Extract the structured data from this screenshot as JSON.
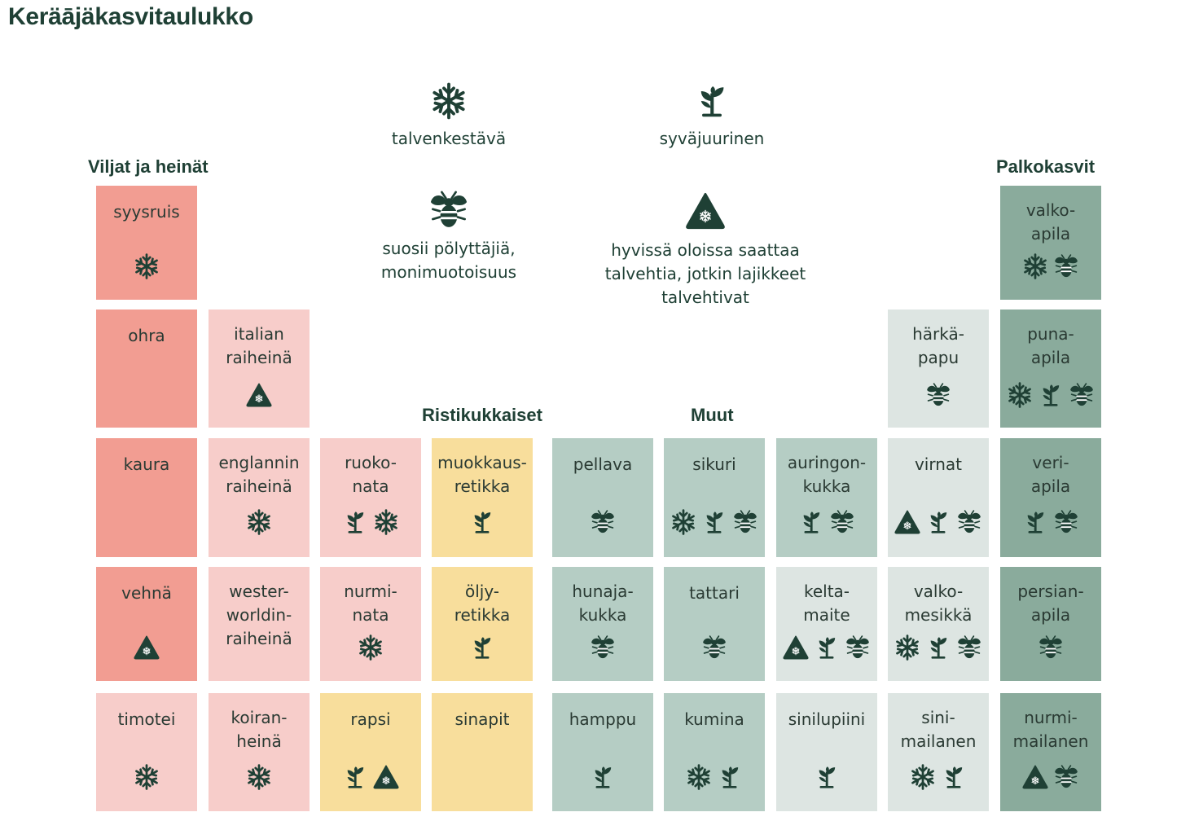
{
  "title": "Keräājäkasvitaulukko",
  "groups": {
    "cereals": "Viljat ja heinät",
    "crucifers": "Ristikukkaiset",
    "other": "Muut",
    "legumes": "Palkokasvit"
  },
  "legend": {
    "winter_hardy": "talvenkestävä",
    "deep_rooted": "syväjuurinen",
    "pollinators": "suosii pölyttäjiä,\nmonimuotoisuus",
    "may_overwinter": "hyvissä oloissa saattaa\ntalvehtia, jotkin lajikkeet\ntalvehtivat"
  },
  "icon_names": {
    "snow": "snowflake-icon",
    "root": "sprout-icon",
    "bee": "bee-icon",
    "warn": "warning-snowflake-icon"
  },
  "colors": {
    "title": "#1f4035",
    "tile_red": "#f29d92",
    "tile_pink": "#f7cdca",
    "tile_yellow": "#f8de9c",
    "tile_sage": "#b5cdc4",
    "tile_light": "#dde5e2",
    "tile_green": "#8aab9c"
  },
  "tiles": [
    {
      "name": "syysruis",
      "color": "tile_red",
      "icons": [
        "snow"
      ]
    },
    {
      "name": "ohra",
      "color": "tile_red",
      "icons": []
    },
    {
      "name": "italian\nraiheinä",
      "color": "tile_pink",
      "icons": [
        "warn"
      ]
    },
    {
      "name": "kaura",
      "color": "tile_red",
      "icons": []
    },
    {
      "name": "englannin\nraiheinä",
      "color": "tile_pink",
      "icons": [
        "snow"
      ]
    },
    {
      "name": "ruoko-\nnata",
      "color": "tile_pink",
      "icons": [
        "root",
        "snow"
      ]
    },
    {
      "name": "vehnä",
      "color": "tile_red",
      "icons": [
        "warn"
      ]
    },
    {
      "name": "wester-\nworldin-\nraiheinä",
      "color": "tile_pink",
      "icons": []
    },
    {
      "name": "nurmi-\nnata",
      "color": "tile_pink",
      "icons": [
        "snow"
      ]
    },
    {
      "name": "timotei",
      "color": "tile_pink",
      "icons": [
        "snow"
      ]
    },
    {
      "name": "koiran-\nheinä",
      "color": "tile_pink",
      "icons": [
        "snow"
      ]
    },
    {
      "name": "rapsi",
      "color": "tile_yellow",
      "icons": [
        "root",
        "warn"
      ]
    },
    {
      "name": "muokkaus-\nretikka",
      "color": "tile_yellow",
      "icons": [
        "root"
      ]
    },
    {
      "name": "öljy-\nretikka",
      "color": "tile_yellow",
      "icons": [
        "root"
      ]
    },
    {
      "name": "sinapit",
      "color": "tile_yellow",
      "icons": []
    },
    {
      "name": "pellava",
      "color": "tile_sage",
      "icons": [
        "bee"
      ]
    },
    {
      "name": "hunaja-\nkukka",
      "color": "tile_sage",
      "icons": [
        "bee"
      ]
    },
    {
      "name": "hamppu",
      "color": "tile_sage",
      "icons": [
        "root"
      ]
    },
    {
      "name": "sikuri",
      "color": "tile_sage",
      "icons": [
        "snow",
        "root",
        "bee"
      ]
    },
    {
      "name": "tattari",
      "color": "tile_sage",
      "icons": [
        "bee"
      ]
    },
    {
      "name": "kumina",
      "color": "tile_sage",
      "icons": [
        "snow",
        "root"
      ]
    },
    {
      "name": "auringon-\nkukka",
      "color": "tile_sage",
      "icons": [
        "root",
        "bee"
      ]
    },
    {
      "name": "kelta-\nmaite",
      "color": "tile_light",
      "icons": [
        "warn",
        "root",
        "bee"
      ]
    },
    {
      "name": "sinilupiini",
      "color": "tile_light",
      "icons": [
        "root"
      ]
    },
    {
      "name": "härkä-\npapu",
      "color": "tile_light",
      "icons": [
        "bee"
      ]
    },
    {
      "name": "virnat",
      "color": "tile_light",
      "icons": [
        "warn",
        "root",
        "bee"
      ]
    },
    {
      "name": "valko-\nmesikkä",
      "color": "tile_light",
      "icons": [
        "snow",
        "root",
        "bee"
      ]
    },
    {
      "name": "sini-\nmailanen",
      "color": "tile_light",
      "icons": [
        "snow",
        "root"
      ]
    },
    {
      "name": "valko-\napila",
      "color": "tile_green",
      "icons": [
        "snow",
        "bee"
      ]
    },
    {
      "name": "puna-\napila",
      "color": "tile_green",
      "icons": [
        "snow",
        "root",
        "bee"
      ]
    },
    {
      "name": "veri-\napila",
      "color": "tile_green",
      "icons": [
        "root",
        "bee"
      ]
    },
    {
      "name": "persian-\napila",
      "color": "tile_green",
      "icons": [
        "bee"
      ]
    },
    {
      "name": "nurmi-\nmailanen",
      "color": "tile_green",
      "icons": [
        "warn",
        "bee"
      ]
    }
  ]
}
